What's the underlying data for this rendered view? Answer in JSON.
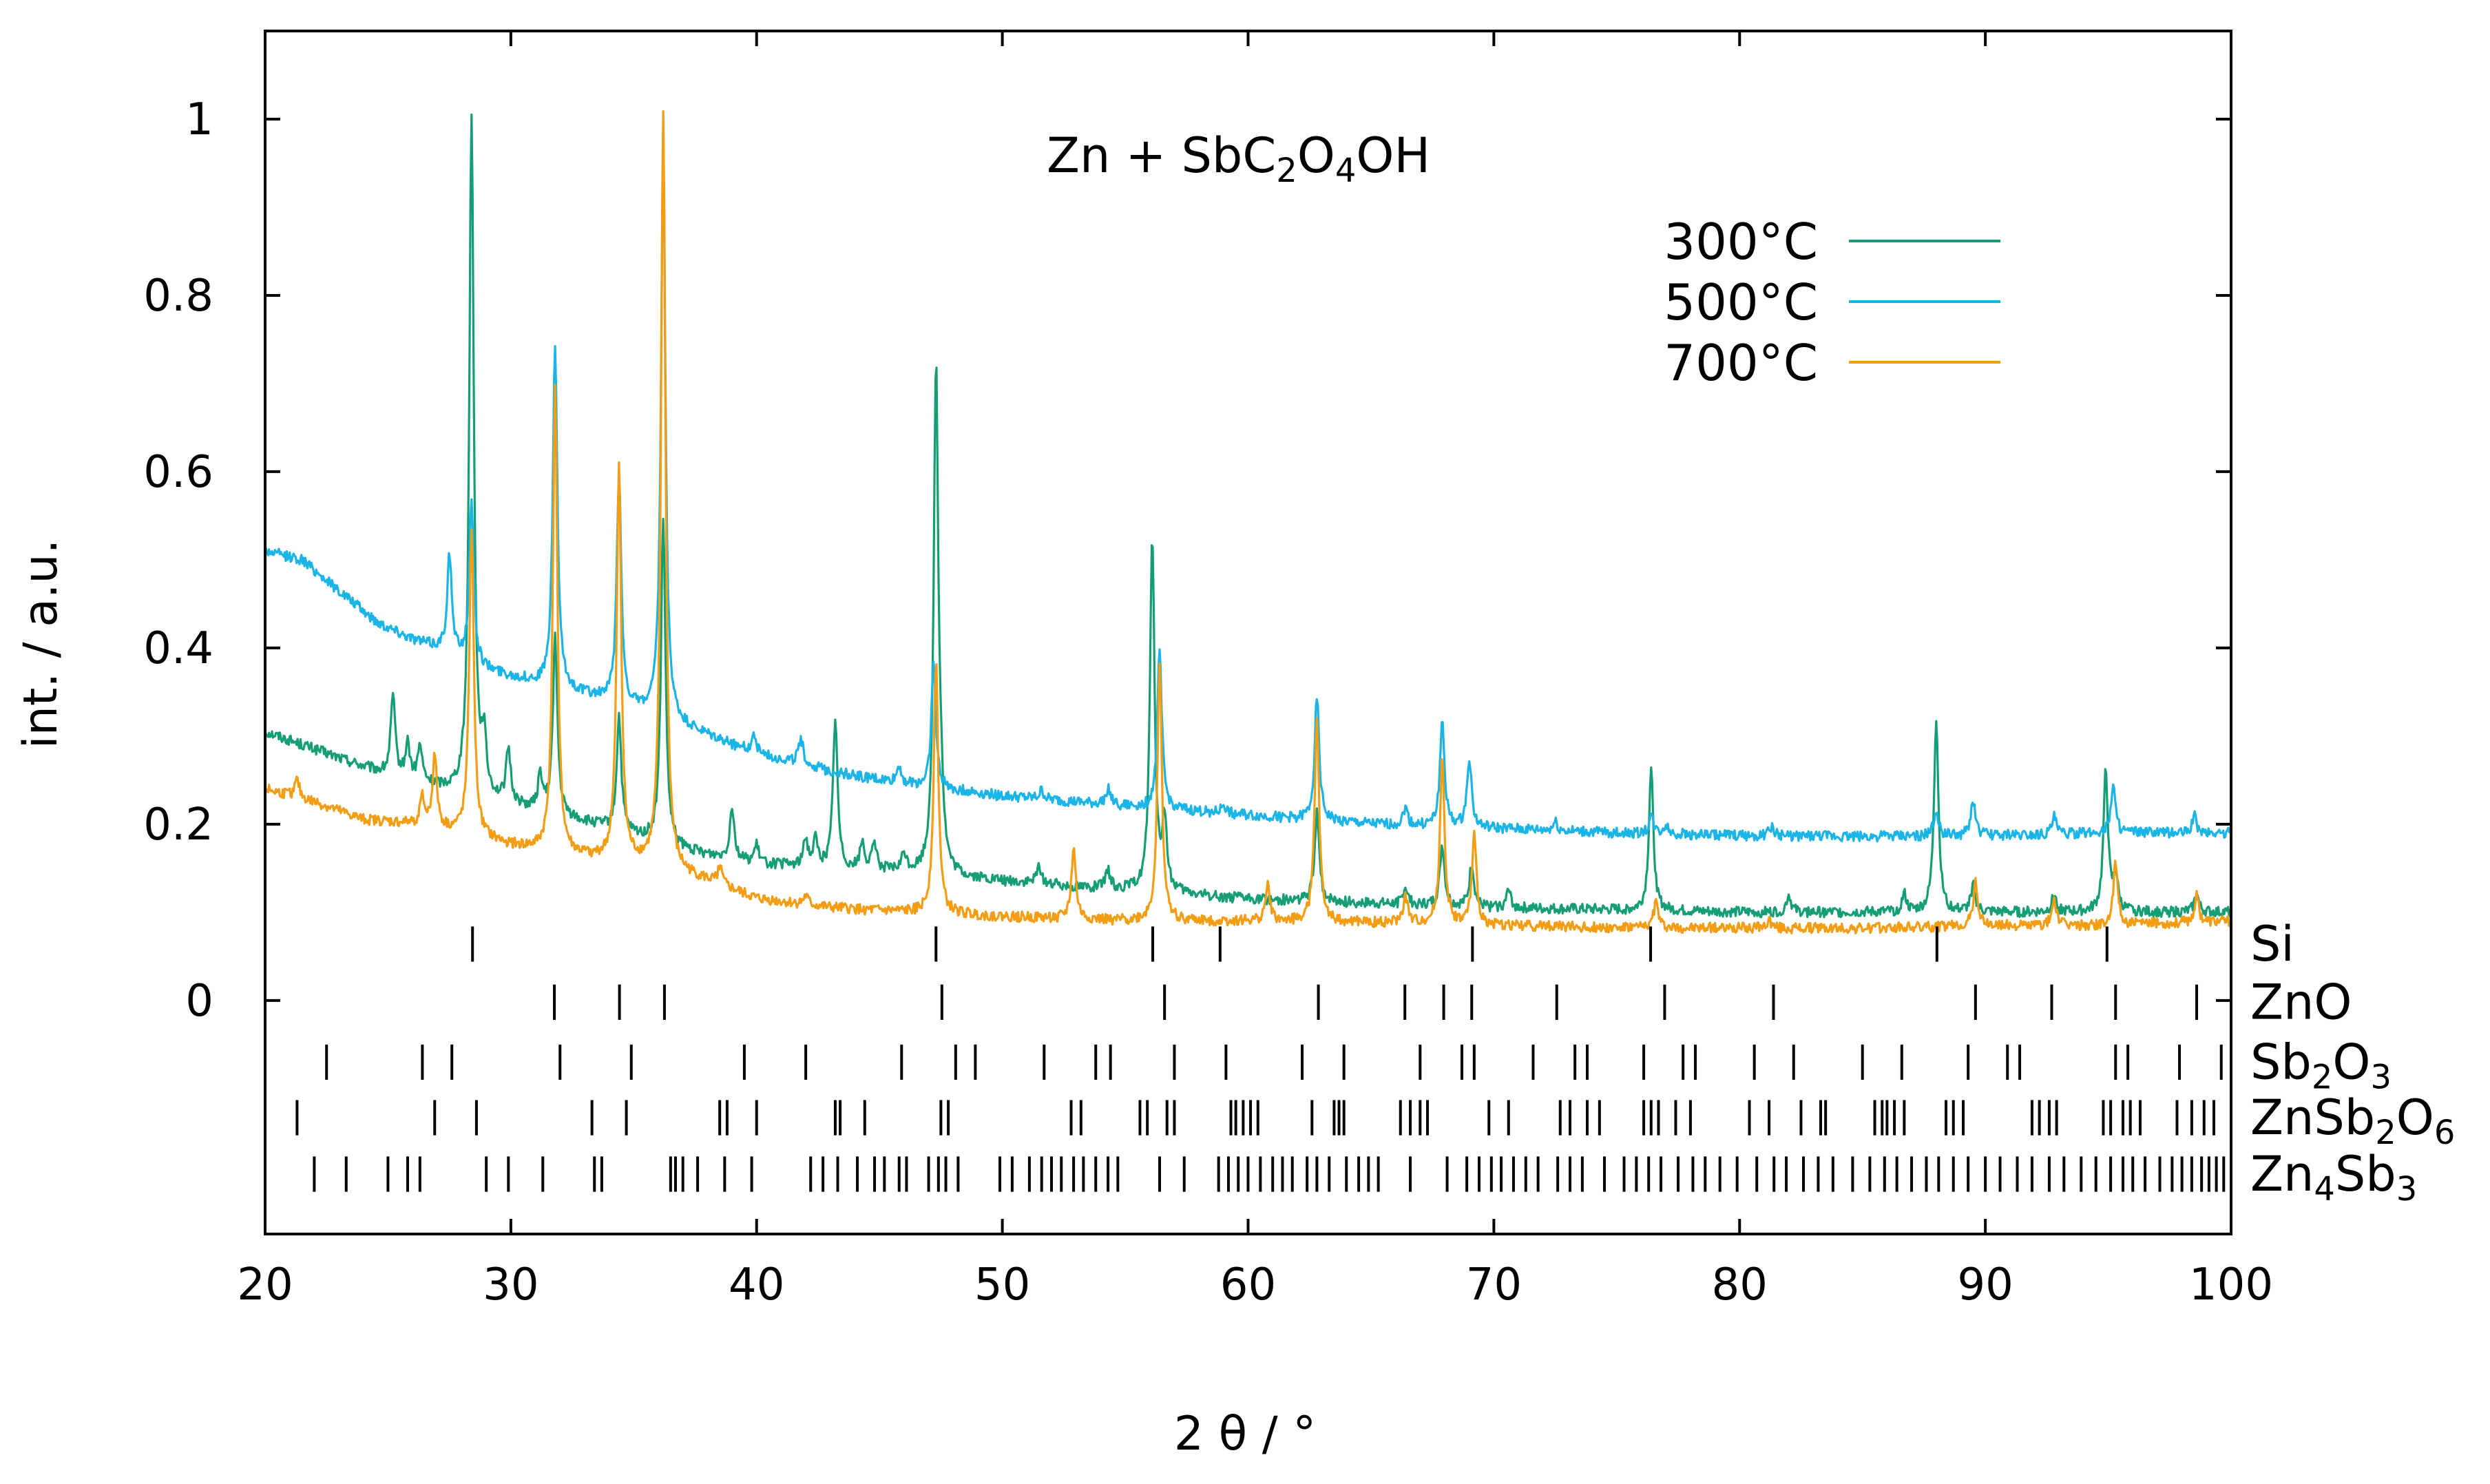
{
  "chart_data": {
    "type": "line",
    "title": "Zn + SbC2O4OH",
    "title_parts": {
      "a": "Zn + SbC",
      "s1": "2",
      "b": "O",
      "s2": "4",
      "c": "OH"
    },
    "xlabel": "2 θ / °",
    "ylabel": "int. / a.u.",
    "xlim": [
      20,
      100
    ],
    "ylim": [
      -0.265,
      1.1
    ],
    "x_ticks": [
      20,
      30,
      40,
      50,
      60,
      70,
      80,
      90,
      100
    ],
    "y_ticks": [
      0,
      0.2,
      0.4,
      0.6,
      0.8,
      1
    ],
    "y_tick_labels": [
      "0",
      "0.2",
      "0.4",
      "0.6",
      "0.8",
      "1"
    ],
    "legend_position": "top-right",
    "series": [
      {
        "name": "300°C",
        "color": "#159e75",
        "baseline": [
          [
            20,
            0.305
          ],
          [
            22,
            0.285
          ],
          [
            25,
            0.255
          ],
          [
            28,
            0.235
          ],
          [
            31,
            0.215
          ],
          [
            34,
            0.195
          ],
          [
            37,
            0.17
          ],
          [
            40,
            0.155
          ],
          [
            43,
            0.15
          ],
          [
            46,
            0.145
          ],
          [
            50,
            0.135
          ],
          [
            55,
            0.125
          ],
          [
            60,
            0.115
          ],
          [
            65,
            0.11
          ],
          [
            70,
            0.105
          ],
          [
            80,
            0.1
          ],
          [
            90,
            0.1
          ],
          [
            100,
            0.1
          ]
        ],
        "peaks": [
          [
            25.2,
            0.09
          ],
          [
            25.8,
            0.04
          ],
          [
            26.3,
            0.04
          ],
          [
            28.4,
            0.77
          ],
          [
            28.9,
            0.06
          ],
          [
            29.9,
            0.06
          ],
          [
            31.2,
            0.04
          ],
          [
            31.8,
            0.2
          ],
          [
            34.4,
            0.13
          ],
          [
            36.2,
            0.37
          ],
          [
            39.0,
            0.06
          ],
          [
            40.0,
            0.02
          ],
          [
            42.0,
            0.03
          ],
          [
            42.4,
            0.03
          ],
          [
            43.2,
            0.17
          ],
          [
            44.3,
            0.03
          ],
          [
            44.8,
            0.03
          ],
          [
            46.0,
            0.02
          ],
          [
            47.3,
            0.575
          ],
          [
            47.5,
            0.06
          ],
          [
            51.5,
            0.02
          ],
          [
            54.3,
            0.02
          ],
          [
            56.1,
            0.405
          ],
          [
            56.6,
            0.08
          ],
          [
            62.8,
            0.1
          ],
          [
            66.4,
            0.02
          ],
          [
            67.9,
            0.07
          ],
          [
            69.1,
            0.05
          ],
          [
            70.6,
            0.02
          ],
          [
            76.4,
            0.16
          ],
          [
            82.0,
            0.02
          ],
          [
            86.7,
            0.02
          ],
          [
            88.0,
            0.22
          ],
          [
            89.5,
            0.03
          ],
          [
            92.8,
            0.02
          ],
          [
            94.9,
            0.16
          ],
          [
            95.3,
            0.04
          ],
          [
            98.6,
            0.02
          ]
        ]
      },
      {
        "name": "500°C",
        "color": "#1ab4e6",
        "baseline": [
          [
            20,
            0.51
          ],
          [
            21.5,
            0.5
          ],
          [
            23,
            0.465
          ],
          [
            24.5,
            0.43
          ],
          [
            26,
            0.41
          ],
          [
            27.5,
            0.395
          ],
          [
            29,
            0.375
          ],
          [
            31,
            0.36
          ],
          [
            34,
            0.34
          ],
          [
            37,
            0.31
          ],
          [
            40,
            0.28
          ],
          [
            43,
            0.26
          ],
          [
            46,
            0.245
          ],
          [
            50,
            0.232
          ],
          [
            55,
            0.22
          ],
          [
            60,
            0.21
          ],
          [
            65,
            0.2
          ],
          [
            70,
            0.195
          ],
          [
            75,
            0.19
          ],
          [
            80,
            0.187
          ],
          [
            85,
            0.186
          ],
          [
            90,
            0.187
          ],
          [
            95,
            0.19
          ],
          [
            100,
            0.19
          ]
        ],
        "peaks": [
          [
            27.5,
            0.11
          ],
          [
            28.4,
            0.18
          ],
          [
            31.8,
            0.39
          ],
          [
            34.4,
            0.26
          ],
          [
            36.2,
            0.64
          ],
          [
            39.9,
            0.02
          ],
          [
            41.8,
            0.03
          ],
          [
            45.8,
            0.02
          ],
          [
            47.2,
            0.14
          ],
          [
            51.6,
            0.01
          ],
          [
            54.3,
            0.02
          ],
          [
            56.4,
            0.18
          ],
          [
            59.0,
            0.01
          ],
          [
            62.8,
            0.14
          ],
          [
            66.4,
            0.02
          ],
          [
            67.9,
            0.12
          ],
          [
            69.0,
            0.08
          ],
          [
            72.5,
            0.01
          ],
          [
            76.4,
            0.02
          ],
          [
            77.0,
            0.01
          ],
          [
            81.3,
            0.01
          ],
          [
            88.0,
            0.03
          ],
          [
            89.5,
            0.04
          ],
          [
            92.8,
            0.02
          ],
          [
            95.2,
            0.055
          ],
          [
            98.5,
            0.02
          ]
        ]
      },
      {
        "name": "700°C",
        "color": "#f29d14",
        "baseline": [
          [
            20,
            0.24
          ],
          [
            22,
            0.225
          ],
          [
            24,
            0.205
          ],
          [
            26,
            0.2
          ],
          [
            28,
            0.19
          ],
          [
            30,
            0.175
          ],
          [
            32,
            0.165
          ],
          [
            35,
            0.155
          ],
          [
            38,
            0.135
          ],
          [
            40,
            0.115
          ],
          [
            43,
            0.105
          ],
          [
            46,
            0.1
          ],
          [
            50,
            0.095
          ],
          [
            55,
            0.09
          ],
          [
            60,
            0.09
          ],
          [
            65,
            0.088
          ],
          [
            70,
            0.085
          ],
          [
            75,
            0.083
          ],
          [
            80,
            0.082
          ],
          [
            85,
            0.082
          ],
          [
            90,
            0.085
          ],
          [
            95,
            0.085
          ],
          [
            100,
            0.09
          ]
        ],
        "peaks": [
          [
            21.3,
            0.02
          ],
          [
            26.4,
            0.03
          ],
          [
            26.9,
            0.08
          ],
          [
            28.4,
            0.35
          ],
          [
            31.8,
            0.53
          ],
          [
            34.4,
            0.45
          ],
          [
            36.2,
            0.86
          ],
          [
            38.5,
            0.02
          ],
          [
            42.0,
            0.01
          ],
          [
            47.3,
            0.29
          ],
          [
            52.9,
            0.08
          ],
          [
            56.4,
            0.29
          ],
          [
            60.8,
            0.04
          ],
          [
            62.8,
            0.23
          ],
          [
            66.4,
            0.03
          ],
          [
            67.9,
            0.19
          ],
          [
            69.2,
            0.1
          ],
          [
            76.6,
            0.03
          ],
          [
            81.2,
            0.01
          ],
          [
            89.6,
            0.05
          ],
          [
            92.8,
            0.03
          ],
          [
            95.3,
            0.07
          ],
          [
            98.6,
            0.03
          ]
        ]
      }
    ],
    "reference_phases": [
      {
        "name": "Si",
        "label_parts": {
          "a": "Si"
        },
        "positions": [
          28.44,
          47.3,
          56.12,
          58.86,
          69.13,
          76.38,
          88.03,
          94.95
        ]
      },
      {
        "name": "ZnO",
        "label_parts": {
          "a": "ZnO"
        },
        "positions": [
          31.77,
          34.42,
          36.25,
          47.54,
          56.6,
          62.86,
          66.38,
          67.96,
          69.1,
          72.56,
          76.95,
          81.38,
          89.6,
          92.7,
          95.3,
          98.6
        ]
      },
      {
        "name": "Sb2O3",
        "label_parts": {
          "a": "Sb",
          "s1": "2",
          "b": "O",
          "s2": "3"
        },
        "positions": [
          22.5,
          26.4,
          27.6,
          32.0,
          34.9,
          39.5,
          42.0,
          45.9,
          48.1,
          48.9,
          51.7,
          53.8,
          54.4,
          57.0,
          59.1,
          62.2,
          63.9,
          67.0,
          68.7,
          69.2,
          71.6,
          73.3,
          73.8,
          76.1,
          77.7,
          78.2,
          80.6,
          82.2,
          85.0,
          86.6,
          89.3,
          90.9,
          91.4,
          95.3,
          95.8,
          97.9,
          99.6
        ]
      },
      {
        "name": "ZnSb2O6",
        "label_parts": {
          "a": "ZnSb",
          "s1": "2",
          "b": "O",
          "s2": "6"
        },
        "positions": [
          21.3,
          26.9,
          28.6,
          33.3,
          34.7,
          38.5,
          38.8,
          40.0,
          43.2,
          43.4,
          44.4,
          47.5,
          47.8,
          52.8,
          53.2,
          55.6,
          55.9,
          56.7,
          57.0,
          59.3,
          59.5,
          59.8,
          60.1,
          60.4,
          62.6,
          63.5,
          63.7,
          63.9,
          66.2,
          66.6,
          67.0,
          67.3,
          69.8,
          70.6,
          72.7,
          73.1,
          73.8,
          74.3,
          76.1,
          76.4,
          76.7,
          77.4,
          78.0,
          80.4,
          81.2,
          82.5,
          83.3,
          83.5,
          85.5,
          85.8,
          86.0,
          86.3,
          86.7,
          88.4,
          88.7,
          89.1,
          91.9,
          92.2,
          92.6,
          92.9,
          94.8,
          95.1,
          95.6,
          95.9,
          96.3,
          97.8,
          98.4,
          98.9,
          99.3
        ]
      },
      {
        "name": "Zn4Sb3",
        "label_parts": {
          "a": "Zn",
          "s1": "4",
          "b": "Sb",
          "s2": "3"
        },
        "positions": [
          22.0,
          23.3,
          25.0,
          25.8,
          26.3,
          29.0,
          29.9,
          31.3,
          33.4,
          33.7,
          36.5,
          36.7,
          37.0,
          37.6,
          38.7,
          39.8,
          42.2,
          42.7,
          43.3,
          44.1,
          44.8,
          45.2,
          45.8,
          46.1,
          47.0,
          47.4,
          47.7,
          48.2,
          49.9,
          50.4,
          51.1,
          51.6,
          52.0,
          52.4,
          52.9,
          53.3,
          53.8,
          54.3,
          54.7,
          56.4,
          57.4,
          58.8,
          59.2,
          59.6,
          60.0,
          60.5,
          61.0,
          61.4,
          61.8,
          62.4,
          62.8,
          63.3,
          64.0,
          64.5,
          64.9,
          65.3,
          66.6,
          68.1,
          68.9,
          69.4,
          69.9,
          70.3,
          70.8,
          71.3,
          71.8,
          72.6,
          73.1,
          73.6,
          74.5,
          75.3,
          75.8,
          76.3,
          76.8,
          77.5,
          78.1,
          78.6,
          79.2,
          79.9,
          80.7,
          81.4,
          81.9,
          82.6,
          83.2,
          83.8,
          84.6,
          85.3,
          85.9,
          86.4,
          87.0,
          87.6,
          88.1,
          88.7,
          89.3,
          90.0,
          90.6,
          91.3,
          91.9,
          92.6,
          93.2,
          93.9,
          94.5,
          95.1,
          95.6,
          96.0,
          96.5,
          97.1,
          97.6,
          98.0,
          98.4,
          98.8,
          99.1,
          99.4,
          99.7
        ]
      }
    ]
  }
}
